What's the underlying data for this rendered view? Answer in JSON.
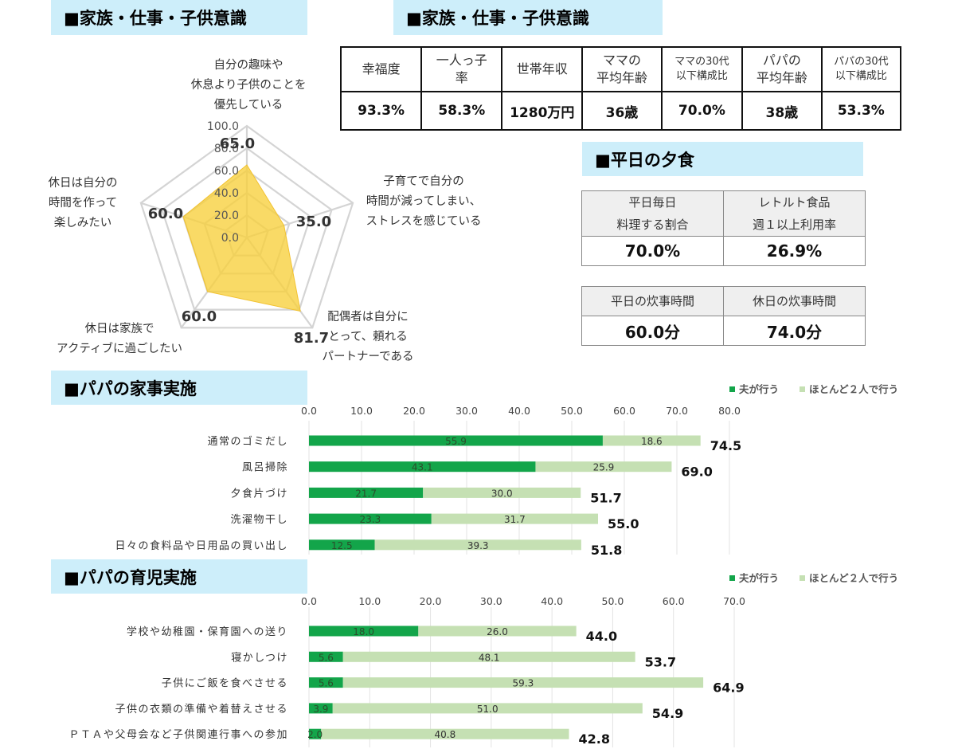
{
  "headers": {
    "radar": "■家族・仕事・子供意識",
    "stats": "■家族・仕事・子供意識",
    "dinner": "■平日の夕食",
    "housework": "■パパの家事実施",
    "childcare": "■パパの育児実施"
  },
  "stats_table": {
    "headers": [
      "幸福度",
      "一人っ子|率",
      "世帯年収",
      "ママの|平均年齢",
      "ママの30代|以下構成比",
      "パパの|平均年齢",
      "パパの30代|以下構成比"
    ],
    "values": [
      "93.3%",
      "58.3%",
      "1280万円",
      "36歳",
      "70.0%",
      "38歳",
      "53.3%"
    ]
  },
  "dinner_table": {
    "h1": "平日毎日",
    "h1b": "料理する割合",
    "h2": "レトルト食品",
    "h2b": "週１以上利用率",
    "v1": "70.0%",
    "v2": "26.9%"
  },
  "cook_table": {
    "h1": "平日の炊事時間",
    "h2": "休日の炊事時間",
    "v1": "60.0分",
    "v2": "74.0分"
  },
  "colors": {
    "header_bg": "#cdeefa",
    "radar_fill": "#f7cf3b",
    "dark_green": "#13a54a",
    "light_green": "#c5e0b3"
  },
  "chart_data": [
    {
      "type": "radar",
      "axis_ticks": [
        "0.0",
        "20.0",
        "40.0",
        "60.0",
        "80.0",
        "100.0"
      ],
      "max": 100,
      "axes": [
        {
          "label": [
            "自分の趣味や",
            "休息より子供のことを",
            "優先している"
          ],
          "value": 65.0,
          "value_text": "65.0"
        },
        {
          "label": [
            "子育てで自分の",
            "時間が減ってしまい、",
            "ストレスを感じている"
          ],
          "value": 35.0,
          "value_text": "35.0"
        },
        {
          "label": [
            "配偶者は自分に",
            "とって、頼れる",
            "パートナーである"
          ],
          "value": 81.7,
          "value_text": "81.7"
        },
        {
          "label": [
            "休日は家族で",
            "アクティブに過ごしたい"
          ],
          "value": 60.0,
          "value_text": "60.0"
        },
        {
          "label": [
            "休日は自分の",
            "時間を作って",
            "楽しみたい"
          ],
          "value": 60.0,
          "value_text": "60.0"
        }
      ]
    },
    {
      "type": "bar",
      "stacked": true,
      "orientation": "horizontal",
      "legend": [
        "夫が行う",
        "ほとんど２人で行う"
      ],
      "legend_position": "top-right",
      "xlim": [
        0,
        80
      ],
      "ticks": [
        "0.0",
        "10.0",
        "20.0",
        "30.0",
        "40.0",
        "50.0",
        "60.0",
        "70.0",
        "80.0"
      ],
      "categories": [
        "通常のゴミだし",
        "風呂掃除",
        "夕食片づけ",
        "洗濯物干し",
        "日々の食料品や日用品の買い出し"
      ],
      "series": [
        {
          "name": "夫が行う",
          "values": [
            55.9,
            43.1,
            21.7,
            23.3,
            12.5
          ],
          "labels": [
            "55.9",
            "43.1",
            "21.7",
            "23.3",
            "12.5"
          ]
        },
        {
          "name": "ほとんど２人で行う",
          "values": [
            18.6,
            25.9,
            30.0,
            31.7,
            39.3
          ],
          "labels": [
            "18.6",
            "25.9",
            "30.0",
            "31.7",
            "39.3"
          ]
        }
      ],
      "totals": [
        "74.5",
        "69.0",
        "51.7",
        "55.0",
        "51.8"
      ]
    },
    {
      "type": "bar",
      "stacked": true,
      "orientation": "horizontal",
      "legend": [
        "夫が行う",
        "ほとんど２人で行う"
      ],
      "legend_position": "top-right",
      "xlim": [
        0,
        70
      ],
      "ticks": [
        "0.0",
        "10.0",
        "20.0",
        "30.0",
        "40.0",
        "50.0",
        "60.0",
        "70.0"
      ],
      "categories": [
        "学校や幼稚園・保育園への送り",
        "寝かしつけ",
        "子供にご飯を食べさせる",
        "子供の衣類の準備や着替えさせる",
        "ＰＴＡや父母会など子供関連行事への参加"
      ],
      "series": [
        {
          "name": "夫が行う",
          "values": [
            18.0,
            5.6,
            5.6,
            3.9,
            2.0
          ],
          "labels": [
            "18.0",
            "5.6",
            "5.6",
            "3.9",
            "2.0"
          ]
        },
        {
          "name": "ほとんど２人で行う",
          "values": [
            26.0,
            48.1,
            59.3,
            51.0,
            40.8
          ],
          "labels": [
            "26.0",
            "48.1",
            "59.3",
            "51.0",
            "40.8"
          ]
        }
      ],
      "totals": [
        "44.0",
        "53.7",
        "64.9",
        "54.9",
        "42.8"
      ]
    }
  ]
}
